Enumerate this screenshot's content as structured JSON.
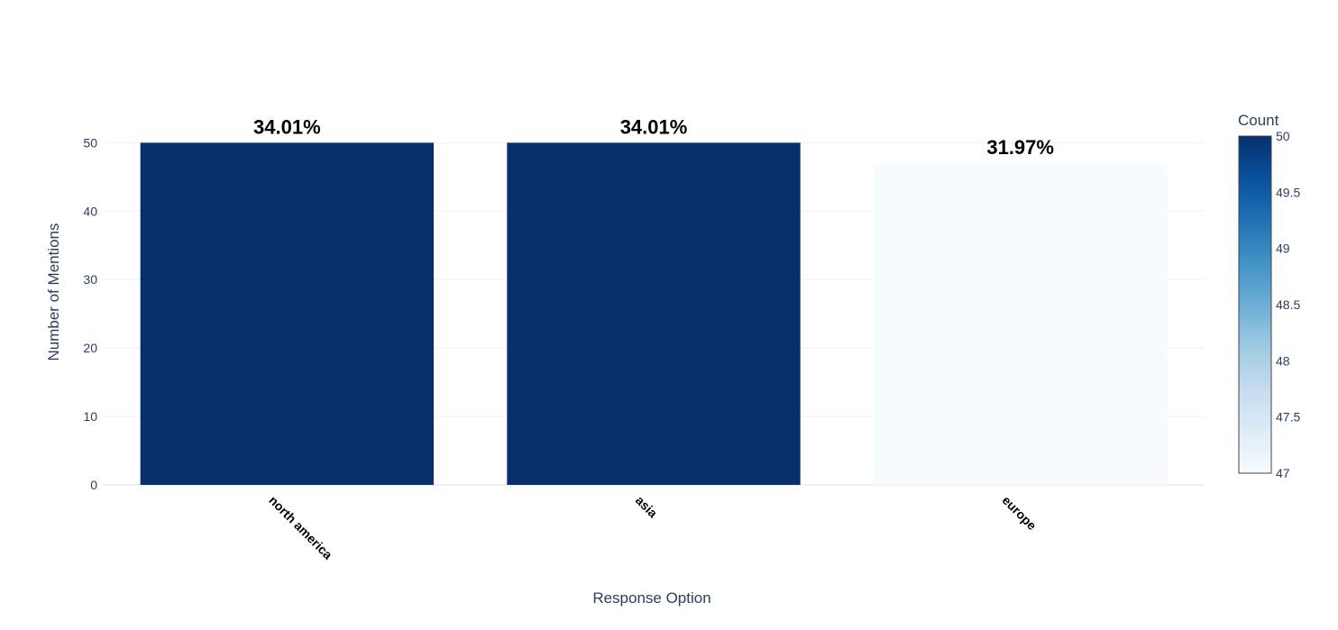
{
  "chart_data": {
    "type": "bar",
    "title": "",
    "xlabel": "Response Option",
    "ylabel": "Number of Mentions",
    "categories": [
      "north america",
      "asia",
      "europe"
    ],
    "values": [
      50,
      50,
      47
    ],
    "data_labels": [
      "34.01%",
      "34.01%",
      "31.97%"
    ],
    "ylim": [
      0,
      54
    ],
    "yticks": [
      0,
      10,
      20,
      30,
      40,
      50
    ],
    "grid": true,
    "legend": "none",
    "colorbar": {
      "title": "Count",
      "range": [
        47,
        50
      ],
      "ticks": [
        "47",
        "47.5",
        "48",
        "48.5",
        "49",
        "49.5",
        "50"
      ],
      "colorscale": "Blues",
      "colors": [
        "#f7fbff",
        "#deebf7",
        "#c6dbef",
        "#9ecae1",
        "#6baed6",
        "#4292c6",
        "#2171b5",
        "#08519c",
        "#08306b"
      ]
    },
    "colors": {
      "axis_text": "#2a3f5f",
      "grid": "#ebf0f8",
      "label_text": "#000000"
    }
  }
}
